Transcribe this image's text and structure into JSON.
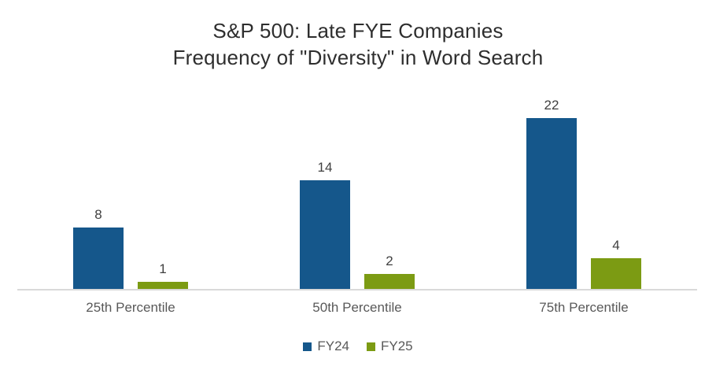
{
  "title": {
    "line1": "S&P 500: Late FYE Companies",
    "line2": "Frequency of \"Diversity\" in Word Search"
  },
  "colors": {
    "fy24": "#15578B",
    "fy25": "#7C9B13",
    "axis_line": "#D9D9D9",
    "value_label_text": "#404040",
    "category_text": "#595959",
    "legend_text": "#595959",
    "title_text": "#2E2E2E",
    "background": "#FFFFFF"
  },
  "chart_data": {
    "type": "bar",
    "title": "S&P 500: Late FYE Companies\nFrequency of \"Diversity\" in Word Search",
    "categories": [
      "25th Percentile",
      "50th Percentile",
      "75th Percentile"
    ],
    "series": [
      {
        "name": "FY24",
        "color": "#15578B",
        "values": [
          8,
          14,
          22
        ]
      },
      {
        "name": "FY25",
        "color": "#7C9B13",
        "values": [
          1,
          2,
          4
        ]
      }
    ],
    "ylim": [
      0,
      24
    ],
    "grid": false,
    "y_axis_visible": false,
    "data_labels": true,
    "legend_position": "bottom",
    "legend_entries": [
      "FY24",
      "FY25"
    ]
  }
}
